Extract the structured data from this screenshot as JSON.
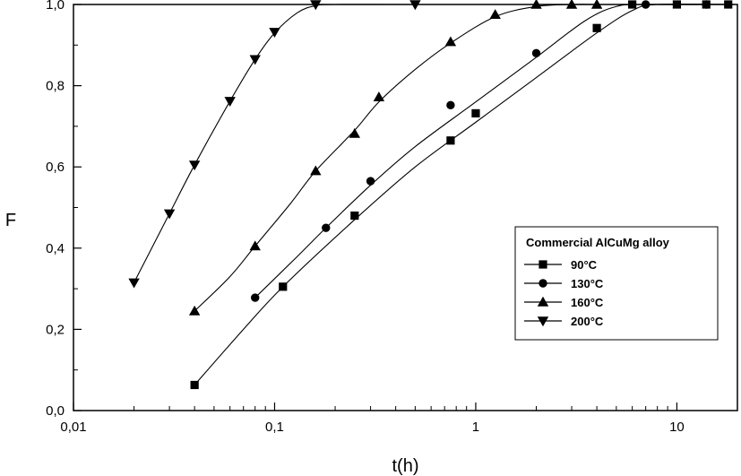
{
  "chart_data": {
    "type": "line",
    "xscale": "log",
    "xlabel": "t(h)",
    "ylabel": "F",
    "xlim": [
      0.01,
      20
    ],
    "ylim": [
      0.0,
      1.0
    ],
    "xticks": [
      {
        "value": 0.01,
        "label": "0,01"
      },
      {
        "value": 0.1,
        "label": "0,1"
      },
      {
        "value": 1,
        "label": "1"
      },
      {
        "value": 10,
        "label": "10"
      }
    ],
    "yticks": [
      {
        "value": 0.0,
        "label": "0,0"
      },
      {
        "value": 0.2,
        "label": "0,2"
      },
      {
        "value": 0.4,
        "label": "0,4"
      },
      {
        "value": 0.6,
        "label": "0,6"
      },
      {
        "value": 0.8,
        "label": "0,8"
      },
      {
        "value": 1.0,
        "label": "1,0"
      }
    ],
    "grid": false,
    "legend": {
      "title": "Commercial AlCuMg alloy",
      "position": "center-right"
    },
    "series": [
      {
        "name": "90°C",
        "marker": "square",
        "x": [
          0.04,
          0.11,
          0.25,
          0.75,
          1.0,
          4.0,
          6.0,
          10.0,
          14.0,
          18.0
        ],
        "y": [
          0.063,
          0.305,
          0.48,
          0.665,
          0.732,
          0.942,
          1.0,
          1.0,
          1.0,
          1.0
        ],
        "curve": [
          [
            0.04,
            0.063
          ],
          [
            0.07,
            0.2
          ],
          [
            0.11,
            0.305
          ],
          [
            0.25,
            0.47
          ],
          [
            0.5,
            0.6
          ],
          [
            1.0,
            0.71
          ],
          [
            2.0,
            0.82
          ],
          [
            4.0,
            0.93
          ],
          [
            6.0,
            0.985
          ],
          [
            8.0,
            1.0
          ],
          [
            20.0,
            1.0
          ]
        ]
      },
      {
        "name": "130°C",
        "marker": "circle",
        "x": [
          0.08,
          0.18,
          0.3,
          0.75,
          2.0,
          7.0,
          14.0
        ],
        "y": [
          0.278,
          0.45,
          0.565,
          0.752,
          0.88,
          1.0,
          1.0
        ],
        "curve": [
          [
            0.08,
            0.278
          ],
          [
            0.13,
            0.38
          ],
          [
            0.18,
            0.45
          ],
          [
            0.3,
            0.555
          ],
          [
            0.5,
            0.65
          ],
          [
            1.0,
            0.76
          ],
          [
            2.0,
            0.87
          ],
          [
            3.5,
            0.96
          ],
          [
            5.0,
            0.995
          ],
          [
            7.0,
            1.0
          ],
          [
            20.0,
            1.0
          ]
        ]
      },
      {
        "name": "160°C",
        "marker": "triangle-up",
        "x": [
          0.04,
          0.08,
          0.16,
          0.25,
          0.33,
          0.75,
          1.25,
          2.0,
          3.0,
          4.0
        ],
        "y": [
          0.245,
          0.405,
          0.59,
          0.682,
          0.772,
          0.908,
          0.975,
          1.0,
          1.0,
          1.0
        ],
        "curve": [
          [
            0.04,
            0.245
          ],
          [
            0.06,
            0.33
          ],
          [
            0.08,
            0.405
          ],
          [
            0.12,
            0.51
          ],
          [
            0.16,
            0.59
          ],
          [
            0.25,
            0.69
          ],
          [
            0.33,
            0.76
          ],
          [
            0.5,
            0.84
          ],
          [
            0.75,
            0.905
          ],
          [
            1.25,
            0.97
          ],
          [
            2.0,
            0.995
          ],
          [
            3.0,
            1.0
          ],
          [
            4.0,
            1.0
          ]
        ]
      },
      {
        "name": "200°C",
        "marker": "triangle-down",
        "x": [
          0.02,
          0.03,
          0.04,
          0.06,
          0.08,
          0.1,
          0.16,
          0.5
        ],
        "y": [
          0.315,
          0.485,
          0.605,
          0.762,
          0.865,
          0.932,
          1.0,
          1.0
        ],
        "curve": [
          [
            0.02,
            0.315
          ],
          [
            0.03,
            0.485
          ],
          [
            0.04,
            0.605
          ],
          [
            0.06,
            0.762
          ],
          [
            0.08,
            0.865
          ],
          [
            0.1,
            0.93
          ],
          [
            0.13,
            0.98
          ],
          [
            0.16,
            0.997
          ],
          [
            0.2,
            1.0
          ],
          [
            0.5,
            1.0
          ]
        ]
      }
    ]
  }
}
